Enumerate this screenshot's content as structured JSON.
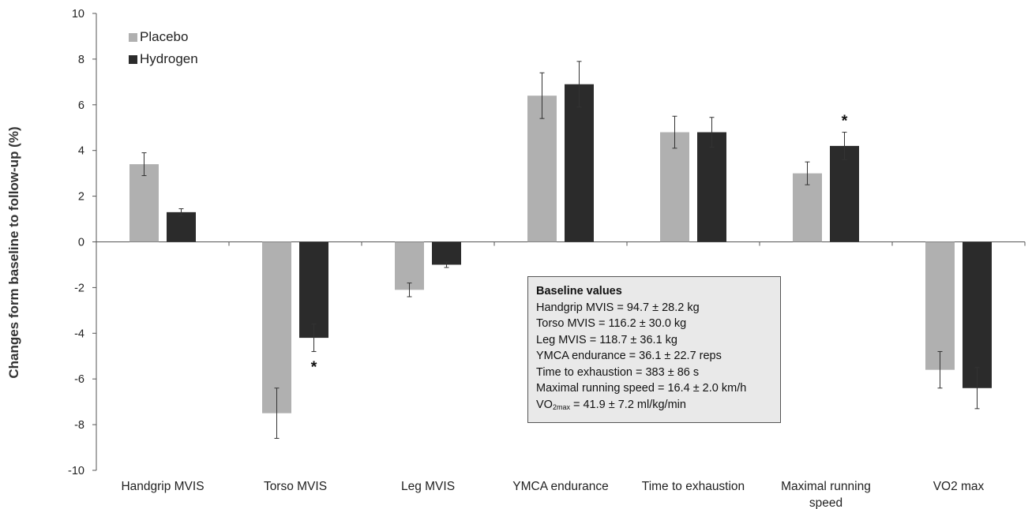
{
  "chart_data": {
    "type": "bar",
    "title": "",
    "xlabel": "",
    "ylabel": "Changes form baseline to follow-up (%)",
    "ylim": [
      -10,
      10
    ],
    "ytick_step": 2,
    "categories": [
      "Handgrip MVIS",
      "Torso MVIS",
      "Leg MVIS",
      "YMCA endurance",
      "Time to exhaustion",
      "Maximal running speed",
      "VO2 max"
    ],
    "series": [
      {
        "name": "Placebo",
        "color": "#b0b0b0",
        "values": [
          3.4,
          -7.5,
          -2.1,
          6.4,
          4.8,
          3.0,
          -5.6
        ],
        "errors": [
          0.5,
          1.1,
          0.3,
          1.0,
          0.7,
          0.5,
          0.8
        ]
      },
      {
        "name": "Hydrogen",
        "color": "#2b2b2b",
        "values": [
          1.3,
          -4.2,
          -1.0,
          6.9,
          4.8,
          4.2,
          -6.4
        ],
        "errors": [
          0.15,
          0.6,
          0.12,
          1.0,
          0.65,
          0.6,
          0.9
        ]
      }
    ],
    "significance": [
      {
        "category": "Torso MVIS",
        "series": "Hydrogen",
        "text": "*"
      },
      {
        "category": "Maximal running speed",
        "series": "Hydrogen",
        "text": "*"
      }
    ],
    "legend_placement": "top-left",
    "grid": false
  },
  "info_box": {
    "title": "Baseline values",
    "lines": [
      "Handgrip MVIS = 94.7 ± 28.2 kg",
      "Torso MVIS = 116.2 ± 30.0 kg",
      "Leg MVIS = 118.7 ± 36.1 kg",
      "YMCA endurance = 36.1 ± 22.7 reps",
      "Time to exhaustion = 383 ± 86 s",
      "Maximal running speed = 16.4 ± 2.0 km/h"
    ],
    "vo2_prefix": "VO",
    "vo2_sub": "2max",
    "vo2_rest": " = 41.9 ± 7.2 ml/kg/min"
  }
}
